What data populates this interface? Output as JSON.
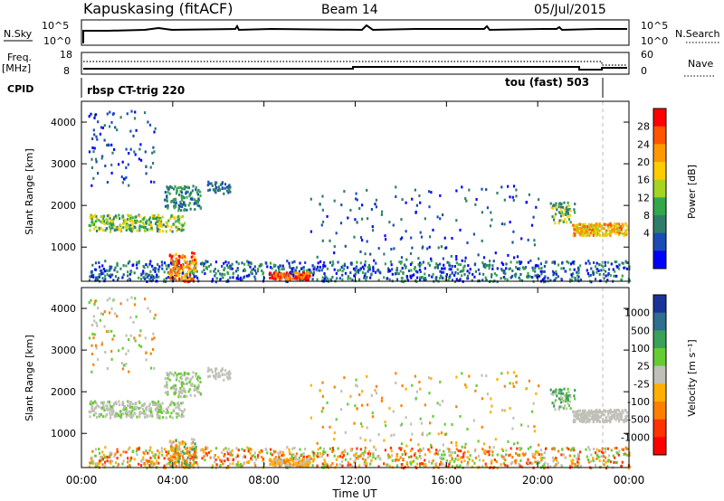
{
  "header": {
    "station": "Kapuskasing (fitACF)",
    "beam": "Beam 14",
    "date": "05/Jul/2015"
  },
  "strip": {
    "nsky_label": "N.Sky",
    "nsky_ticks": [
      "10^5",
      "10^0"
    ],
    "nsearch_label": "N.Search",
    "nsearch_ticks": [
      "10^5",
      "10^0"
    ],
    "freq_label_1": "Freq.",
    "freq_label_2": "[MHz]",
    "freq_ticks": [
      "18",
      "8"
    ],
    "nave_label": "Nave",
    "nave_ticks": [
      "60",
      "0"
    ],
    "cpid_label": "CPID",
    "cpid_left": "rbsp CT-trig 220",
    "cpid_right": "tou (fast) 503"
  },
  "chart_data": [
    {
      "type": "heatmap",
      "name": "power",
      "ylabel": "Slant Range [km]",
      "y_ticks": [
        "4000",
        "3000",
        "2000",
        "1000"
      ],
      "ylim": [
        180,
        4500
      ],
      "x_ticks": [
        "00:00",
        "04:00",
        "08:00",
        "12:00",
        "16:00",
        "20:00",
        "00:00"
      ],
      "xlim_hours": [
        0,
        24
      ],
      "colorbar_label": "Power [dB]",
      "colorbar_ticks": [
        "28",
        "24",
        "20",
        "16",
        "12",
        "8",
        "4"
      ],
      "colorbar_colors": [
        "#ff0000",
        "#ff5500",
        "#ff9900",
        "#ffcc00",
        "#a6d420",
        "#33a84a",
        "#2e7d6b",
        "#1a4db3",
        "#0000ff"
      ]
    },
    {
      "type": "heatmap",
      "name": "velocity",
      "ylabel": "Slant Range [km]",
      "y_ticks": [
        "4000",
        "3000",
        "2000",
        "1000"
      ],
      "ylim": [
        180,
        4500
      ],
      "x_ticks": [
        "00:00",
        "04:00",
        "08:00",
        "12:00",
        "16:00",
        "20:00",
        "00:00"
      ],
      "xlim_hours": [
        0,
        24
      ],
      "xlabel": "Time UT",
      "colorbar_label": "Velocity [m s⁻¹]",
      "colorbar_ticks": [
        "1000",
        "500",
        "100",
        "25",
        "-25",
        "-100",
        "-500",
        "-1000"
      ],
      "colorbar_colors": [
        "#1a3399",
        "#2e6e8e",
        "#3aa05a",
        "#66cc33",
        "#c0c0b8",
        "#ffb000",
        "#ff7f00",
        "#ff3300",
        "#ff0000"
      ]
    }
  ]
}
